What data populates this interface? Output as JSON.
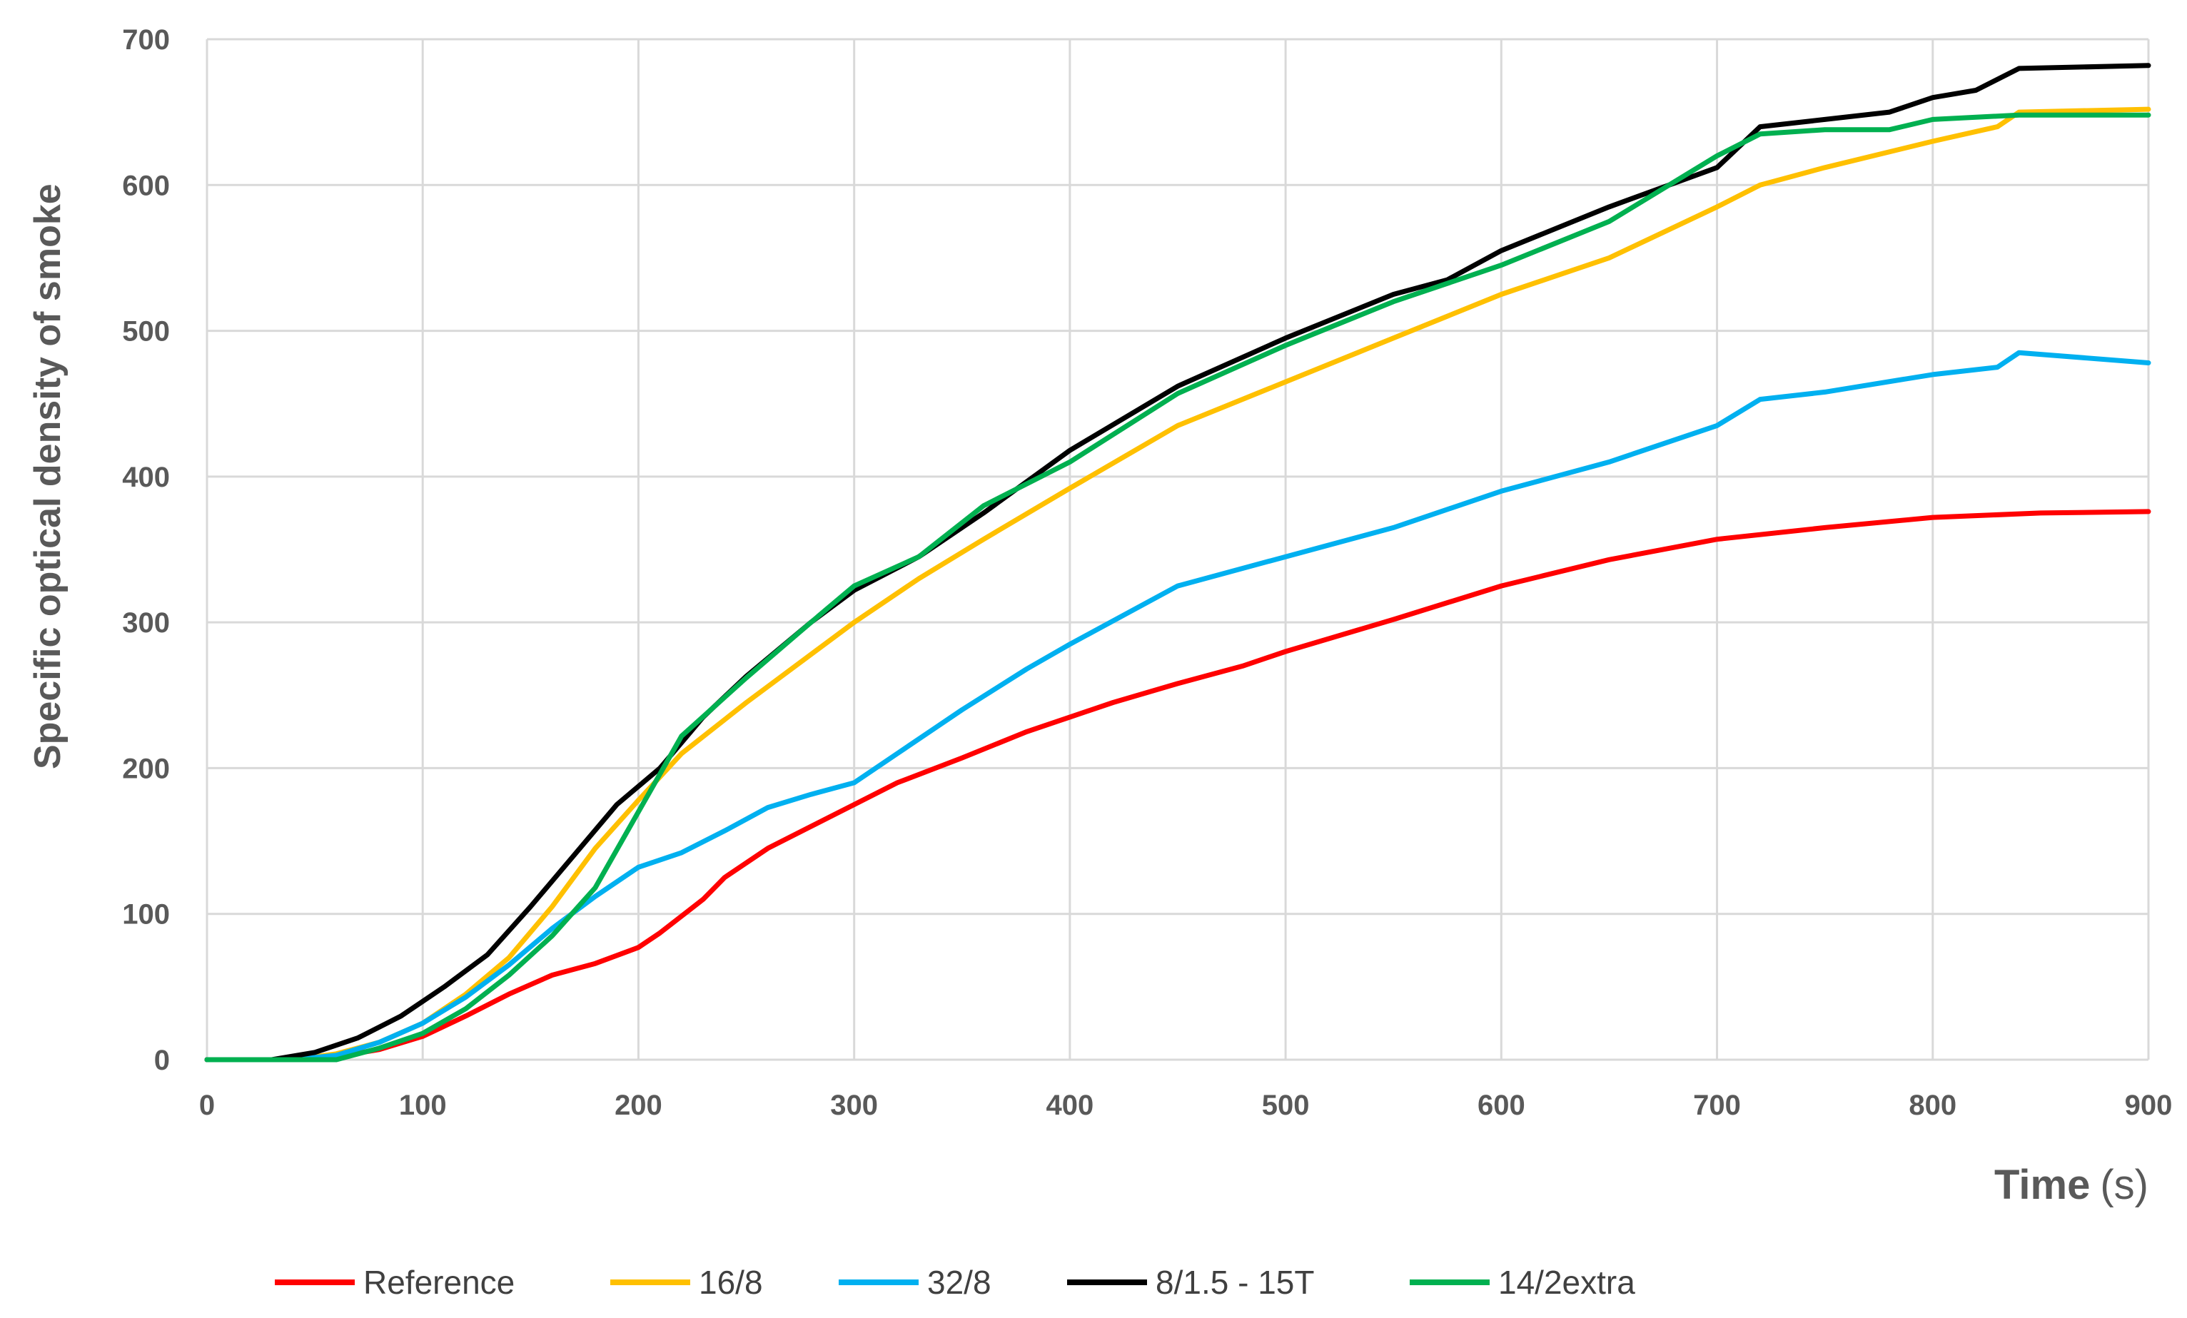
{
  "chart_data": {
    "type": "line",
    "title": "",
    "xlabel": "Time",
    "xlabel_unit": "(s)",
    "ylabel": "Specific optical density of smoke",
    "xlim": [
      0,
      900
    ],
    "ylim": [
      0,
      700
    ],
    "xticks": [
      0,
      100,
      200,
      300,
      400,
      500,
      600,
      700,
      800,
      900
    ],
    "yticks": [
      0,
      100,
      200,
      300,
      400,
      500,
      600,
      700
    ],
    "xtick_labels": [
      "0",
      "100",
      "200",
      "300",
      "400",
      "500",
      "600",
      "700",
      "800",
      "900"
    ],
    "ytick_labels": [
      "0",
      "100",
      "200",
      "300",
      "400",
      "500",
      "600",
      "700"
    ],
    "grid": true,
    "legend_position": "bottom",
    "series": [
      {
        "name": "Reference",
        "color": "#ff0000",
        "x": [
          0,
          30,
          60,
          80,
          100,
          120,
          140,
          160,
          180,
          200,
          210,
          230,
          240,
          260,
          280,
          300,
          320,
          350,
          380,
          400,
          420,
          450,
          480,
          500,
          550,
          600,
          650,
          700,
          750,
          800,
          850,
          900
        ],
        "y": [
          0,
          0,
          2,
          7,
          16,
          30,
          45,
          58,
          66,
          77,
          87,
          110,
          125,
          145,
          160,
          175,
          190,
          207,
          225,
          235,
          245,
          258,
          270,
          280,
          302,
          325,
          343,
          357,
          365,
          372,
          375,
          376
        ]
      },
      {
        "name": "16/8",
        "color": "#ffc000",
        "x": [
          0,
          40,
          60,
          80,
          100,
          120,
          140,
          160,
          180,
          200,
          220,
          250,
          280,
          300,
          330,
          360,
          400,
          450,
          500,
          550,
          575,
          600,
          650,
          700,
          720,
          750,
          800,
          830,
          840,
          900
        ],
        "y": [
          0,
          0,
          4,
          12,
          25,
          45,
          70,
          105,
          145,
          178,
          210,
          245,
          278,
          300,
          330,
          357,
          392,
          435,
          465,
          495,
          510,
          525,
          550,
          585,
          600,
          612,
          630,
          640,
          650,
          652
        ]
      },
      {
        "name": "32/8",
        "color": "#00b0f0",
        "x": [
          0,
          40,
          60,
          80,
          100,
          120,
          140,
          160,
          180,
          200,
          220,
          240,
          260,
          280,
          300,
          320,
          350,
          380,
          400,
          450,
          500,
          550,
          600,
          650,
          700,
          720,
          750,
          800,
          830,
          840,
          900
        ],
        "y": [
          0,
          0,
          3,
          12,
          25,
          43,
          65,
          90,
          112,
          132,
          142,
          157,
          173,
          182,
          190,
          210,
          240,
          268,
          285,
          325,
          345,
          365,
          390,
          410,
          435,
          453,
          458,
          470,
          475,
          485,
          478
        ]
      },
      {
        "name": "8/1.5 - 15T",
        "color": "#000000",
        "x": [
          0,
          30,
          50,
          70,
          90,
          110,
          130,
          150,
          170,
          190,
          210,
          230,
          250,
          280,
          300,
          330,
          360,
          400,
          450,
          500,
          550,
          575,
          600,
          650,
          700,
          720,
          750,
          780,
          800,
          820,
          840,
          900
        ],
        "y": [
          0,
          0,
          5,
          15,
          30,
          50,
          72,
          105,
          140,
          175,
          200,
          235,
          263,
          300,
          322,
          345,
          375,
          418,
          462,
          495,
          525,
          535,
          555,
          585,
          612,
          640,
          645,
          650,
          660,
          665,
          680,
          682
        ]
      },
      {
        "name": "14/2extra",
        "color": "#00b050",
        "x": [
          0,
          60,
          80,
          100,
          120,
          140,
          160,
          180,
          200,
          220,
          250,
          280,
          300,
          330,
          360,
          400,
          450,
          500,
          550,
          600,
          650,
          700,
          720,
          750,
          780,
          800,
          840,
          900
        ],
        "y": [
          0,
          0,
          8,
          18,
          35,
          58,
          85,
          118,
          170,
          222,
          262,
          300,
          325,
          345,
          380,
          410,
          457,
          490,
          520,
          545,
          575,
          620,
          635,
          638,
          638,
          645,
          648,
          648
        ]
      }
    ]
  }
}
